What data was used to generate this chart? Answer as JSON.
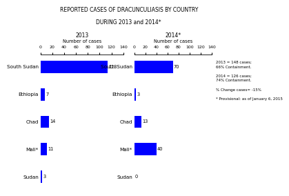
{
  "title_line1": "REPORTED CASES OF DRACUNCULIASIS BY COUNTRY",
  "title_line2": "DURING 2013 and 2014*",
  "subtitle_2013": "2013",
  "subtitle_2014": "2014*",
  "xlabel": "Number of cases",
  "countries": [
    "South Sudan",
    "Ethiopia",
    "Chad",
    "Mali*",
    "Sudan"
  ],
  "values_2013": [
    113,
    7,
    14,
    11,
    3
  ],
  "values_2014": [
    70,
    3,
    13,
    40,
    0
  ],
  "bar_color": "#0000FF",
  "xlim": [
    0,
    140
  ],
  "xticks": [
    0,
    20,
    40,
    60,
    80,
    100,
    120,
    140
  ],
  "annotation_lines": [
    "2013 = 148 cases;",
    "66% Containment.",
    "",
    "2014 = 126 cases;",
    "74% Containment.",
    "",
    "% Change cases= -15%",
    "",
    "* Provisional: as of January 6, 2015"
  ],
  "background_color": "#ffffff",
  "bar_height": 0.45,
  "fontsize_title": 5.5,
  "fontsize_tick": 4.5,
  "fontsize_label": 4.8,
  "fontsize_country": 5.2,
  "fontsize_value": 4.8,
  "fontsize_annot": 4.0,
  "fontsize_subtitle": 5.5
}
